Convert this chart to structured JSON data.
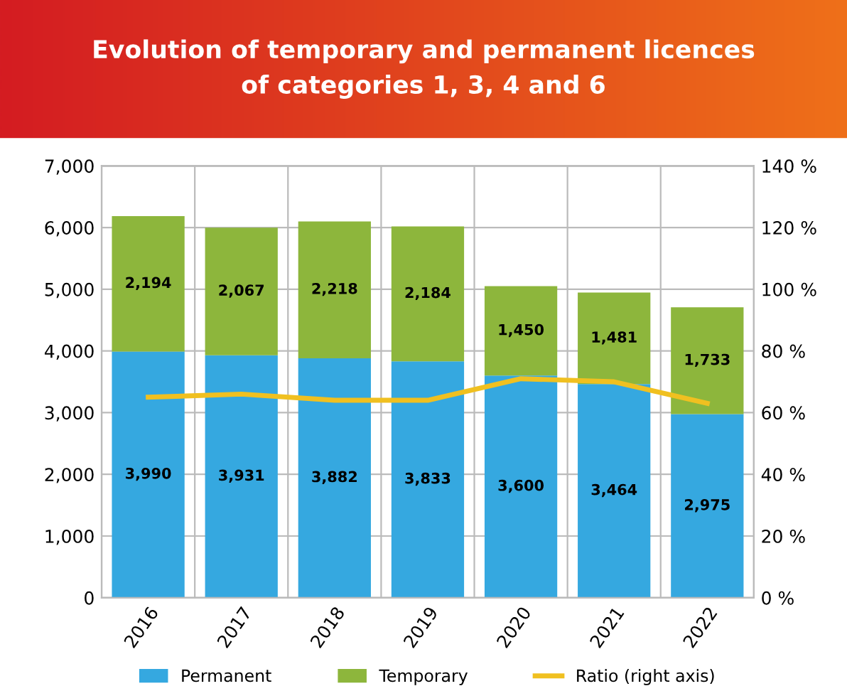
{
  "chart_data": {
    "type": "bar",
    "title": "Evolution of temporary and permanent licences\nof categories 1, 3, 4 and 6",
    "categories": [
      "2016",
      "2017",
      "2018",
      "2019",
      "2020",
      "2021",
      "2022"
    ],
    "stacked": true,
    "series": [
      {
        "name": "Permanent",
        "color": "#35a8e0",
        "values": [
          3990,
          3931,
          3882,
          3833,
          3600,
          3464,
          2975
        ],
        "value_labels": [
          "3,990",
          "3,931",
          "3,882",
          "3,833",
          "3,600",
          "3,464",
          "2,975"
        ]
      },
      {
        "name": "Temporary",
        "color": "#8db63c",
        "values": [
          2194,
          2067,
          2218,
          2184,
          1450,
          1481,
          1733
        ],
        "value_labels": [
          "2,194",
          "2,067",
          "2,218",
          "2,184",
          "1,450",
          "1,481",
          "1,733"
        ]
      },
      {
        "name": "Ratio (right axis)",
        "type": "line",
        "axis": "y2",
        "color": "#f0c020",
        "values": [
          65,
          66,
          64,
          64,
          71,
          70,
          63
        ]
      }
    ],
    "ylim": [
      0,
      7000
    ],
    "yticks": [
      {
        "value": 0,
        "label": "0"
      },
      {
        "value": 1000,
        "label": "1,000"
      },
      {
        "value": 2000,
        "label": "2,000"
      },
      {
        "value": 3000,
        "label": "3,000"
      },
      {
        "value": 4000,
        "label": "4,000"
      },
      {
        "value": 5000,
        "label": "5,000"
      },
      {
        "value": 6000,
        "label": "6,000"
      },
      {
        "value": 7000,
        "label": "7,000"
      }
    ],
    "y2lim": [
      0,
      140
    ],
    "y2ticks": [
      {
        "value": 0,
        "label": "0 %"
      },
      {
        "value": 20,
        "label": "20 %"
      },
      {
        "value": 40,
        "label": "40 %"
      },
      {
        "value": 60,
        "label": "60 %"
      },
      {
        "value": 80,
        "label": "80 %"
      },
      {
        "value": 100,
        "label": "100 %"
      },
      {
        "value": 120,
        "label": "120 %"
      },
      {
        "value": 140,
        "label": "140 %"
      }
    ],
    "grid": true,
    "legend": "bottom",
    "marker": "none",
    "line_style": "solid"
  }
}
